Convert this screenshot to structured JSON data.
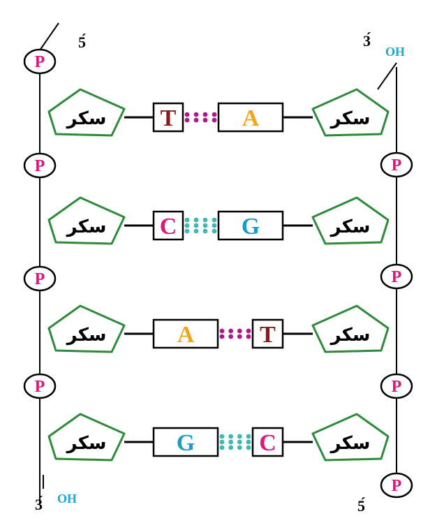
{
  "strand_ends": {
    "top_left": "5́",
    "top_right_prime": "3́",
    "top_right_oh": "OH",
    "bottom_left_prime": "3́",
    "bottom_left_oh": "OH",
    "bottom_right": "5́"
  },
  "phosphate_label": "P",
  "sugar_label": "سكر",
  "base_pairs": [
    {
      "left": "T",
      "right": "A",
      "left_color": "#8b1a1a",
      "right_color": "#f2a51a",
      "bond_color": "#b0178f",
      "bonds": 2
    },
    {
      "left": "C",
      "right": "G",
      "left_color": "#e0157a",
      "right_color": "#1a9cc9",
      "bond_color": "#3fb8b0",
      "bonds": 3
    },
    {
      "left": "A",
      "right": "T",
      "left_color": "#f2a51a",
      "right_color": "#8b1a1a",
      "bond_color": "#b0178f",
      "bonds": 2
    },
    {
      "left": "G",
      "right": "C",
      "left_color": "#1a9cc9",
      "right_color": "#e0157a",
      "bond_color": "#3fb8b0",
      "bonds": 3
    }
  ],
  "colors": {
    "phosphate_text": "#e0157a",
    "sugar_border": "#2e8b3a",
    "oh_text": "#1aa8d6",
    "backbone": "#000000"
  }
}
